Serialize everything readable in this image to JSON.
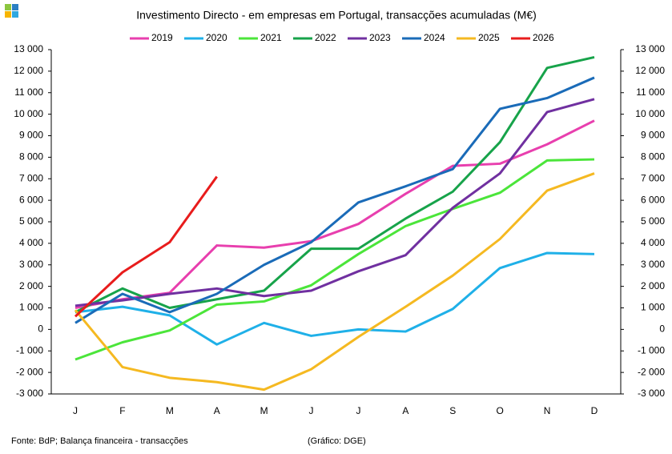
{
  "chart_data": {
    "type": "line",
    "title": "Investimento  Directo - em empresas em Portugal,  transacções acumuladas  (M€)",
    "categories": [
      "J",
      "F",
      "M",
      "A",
      "M",
      "J",
      "J",
      "A",
      "S",
      "O",
      "N",
      "D"
    ],
    "series": [
      {
        "name": "2019",
        "color": "#e83fae",
        "values": [
          1000,
          1400,
          1700,
          3900,
          3800,
          4100,
          4900,
          6300,
          7600,
          7700,
          8600,
          9700
        ]
      },
      {
        "name": "2020",
        "color": "#1fb0e8",
        "values": [
          800,
          1050,
          650,
          -700,
          300,
          -300,
          0,
          -100,
          950,
          2850,
          3550,
          3500
        ]
      },
      {
        "name": "2021",
        "color": "#4be53a",
        "values": [
          -1400,
          -600,
          -50,
          1150,
          1300,
          2050,
          3500,
          4800,
          5600,
          6350,
          7850,
          7900
        ]
      },
      {
        "name": "2022",
        "color": "#17a34a",
        "values": [
          800,
          1900,
          1000,
          1400,
          1800,
          3750,
          3750,
          5150,
          6400,
          8700,
          12150,
          12650
        ]
      },
      {
        "name": "2023",
        "color": "#7030a0",
        "values": [
          1100,
          1350,
          1650,
          1900,
          1550,
          1800,
          2700,
          3450,
          5650,
          7250,
          10100,
          10700
        ]
      },
      {
        "name": "2024",
        "color": "#1a6bb8",
        "values": [
          300,
          1650,
          800,
          1650,
          3000,
          4050,
          5900,
          6650,
          7450,
          10250,
          10750,
          11700
        ]
      },
      {
        "name": "2025",
        "color": "#f5b921",
        "values": [
          900,
          -1750,
          -2250,
          -2450,
          -2800,
          -1850,
          -350,
          1050,
          2500,
          4200,
          6450,
          7250
        ]
      },
      {
        "name": "2026",
        "color": "#e81c1c",
        "values": [
          600,
          2650,
          4050,
          7100,
          null,
          null,
          null,
          null,
          null,
          null,
          null,
          null
        ]
      }
    ],
    "ylim": [
      -3000,
      13000
    ],
    "yticks": [
      {
        "value": -3000,
        "label": "-3 000"
      },
      {
        "value": -2000,
        "label": "-2 000"
      },
      {
        "value": -1000,
        "label": "-1 000"
      },
      0,
      {
        "value": 1000,
        "label": "1 000"
      },
      {
        "value": 2000,
        "label": "2 000"
      },
      {
        "value": 3000,
        "label": "3 000"
      },
      {
        "value": 4000,
        "label": "4 000"
      },
      {
        "value": 5000,
        "label": "5 000"
      },
      {
        "value": 6000,
        "label": "6 000"
      },
      {
        "value": 7000,
        "label": "7 000"
      },
      {
        "value": 8000,
        "label": "8 000"
      },
      {
        "value": 9000,
        "label": "9 000"
      },
      {
        "value": 10000,
        "label": "10 000"
      },
      {
        "value": 11000,
        "label": "11 000"
      },
      {
        "value": 12000,
        "label": "12 000"
      },
      {
        "value": 13000,
        "label": "13 000"
      }
    ],
    "y2lim": [
      -3000,
      13000
    ],
    "y2ticks": [
      {
        "value": -3000,
        "label": "-3 000"
      },
      {
        "value": -2000,
        "label": "-2 000"
      },
      {
        "value": -1000,
        "label": "-1 000"
      },
      0,
      {
        "value": 1000,
        "label": "1 000"
      },
      {
        "value": 2000,
        "label": "2 000"
      },
      {
        "value": 3000,
        "label": "3 000"
      },
      {
        "value": 4000,
        "label": "4 000"
      },
      {
        "value": 5000,
        "label": "5 000"
      },
      {
        "value": 6000,
        "label": "6 000"
      },
      {
        "value": 7000,
        "label": "7 000"
      },
      {
        "value": 8000,
        "label": "8 000"
      },
      {
        "value": 9000,
        "label": "9 000"
      },
      {
        "value": 10000,
        "label": "10 000"
      },
      {
        "value": 11000,
        "label": "11 000"
      },
      {
        "value": 12000,
        "label": "12 000"
      },
      {
        "value": 13000,
        "label": "13 000"
      }
    ],
    "grid": false,
    "legend": "top",
    "source": "Fonte: BdP; Balança financeira - transacções",
    "credit": "(Gráfico: DGE)"
  }
}
